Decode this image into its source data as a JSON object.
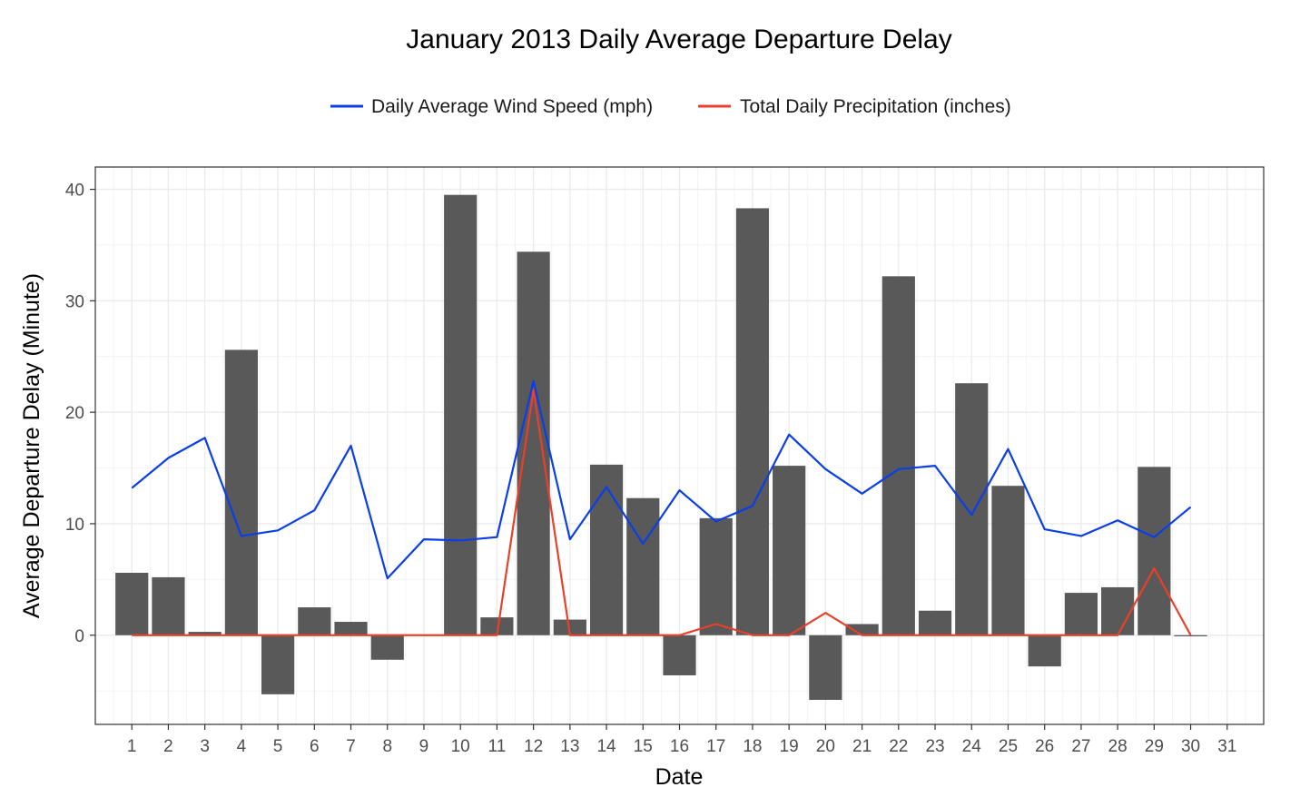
{
  "chart_data": {
    "type": "bar",
    "title": "January 2013 Daily Average Departure Delay",
    "xlabel": "Date",
    "ylabel": "Average Departure Delay (Minute)",
    "x_ticks": [
      "1",
      "2",
      "3",
      "4",
      "5",
      "6",
      "7",
      "8",
      "9",
      "10",
      "11",
      "12",
      "13",
      "14",
      "15",
      "16",
      "17",
      "18",
      "19",
      "20",
      "21",
      "22",
      "23",
      "24",
      "25",
      "26",
      "27",
      "28",
      "29",
      "30",
      "31"
    ],
    "y_ticks": [
      0,
      10,
      20,
      30,
      40
    ],
    "xlim": [
      0,
      32
    ],
    "ylim": [
      -8,
      42
    ],
    "grid": true,
    "legend_position": "top",
    "bars": {
      "x": [
        1,
        2,
        3,
        4,
        5,
        6,
        7,
        8,
        9,
        10,
        11,
        12,
        13,
        14,
        15,
        16,
        17,
        18,
        19,
        20,
        21,
        22,
        23,
        24,
        25,
        26,
        27,
        28,
        29,
        30
      ],
      "values": [
        5.6,
        5.2,
        0.3,
        25.6,
        -5.3,
        2.5,
        1.2,
        -2.2,
        0.0,
        39.5,
        1.6,
        34.4,
        1.4,
        15.3,
        12.3,
        -3.6,
        10.5,
        38.3,
        15.2,
        -5.8,
        1.0,
        32.2,
        2.2,
        22.6,
        13.4,
        -2.8,
        3.8,
        4.3,
        15.1,
        -0.1
      ],
      "color": "#595959"
    },
    "series": [
      {
        "name": "Daily Average Wind Speed (mph)",
        "color": "#0a3ee8",
        "x": [
          1,
          2,
          3,
          4,
          5,
          6,
          7,
          8,
          9,
          10,
          11,
          12,
          13,
          14,
          15,
          16,
          17,
          18,
          19,
          20,
          21,
          22,
          23,
          24,
          25,
          26,
          27,
          28,
          29,
          30
        ],
        "values": [
          13.2,
          15.9,
          17.7,
          8.9,
          9.4,
          11.2,
          17.0,
          5.1,
          8.6,
          8.5,
          8.8,
          22.8,
          8.6,
          13.3,
          8.2,
          13.0,
          10.2,
          11.6,
          18.0,
          14.9,
          12.7,
          14.9,
          15.2,
          10.8,
          16.7,
          9.5,
          8.9,
          10.3,
          8.8,
          11.5
        ]
      },
      {
        "name": "Total Daily Precipitation (inches)",
        "color": "#e8402a",
        "x": [
          1,
          2,
          3,
          4,
          5,
          6,
          7,
          8,
          9,
          10,
          11,
          12,
          13,
          14,
          15,
          16,
          17,
          18,
          19,
          20,
          21,
          22,
          23,
          24,
          25,
          26,
          27,
          28,
          29,
          30
        ],
        "values": [
          0,
          0,
          0,
          0,
          0,
          0,
          0,
          0,
          0,
          0,
          0,
          22,
          0,
          0,
          0,
          0,
          1,
          0,
          0,
          2,
          0,
          0,
          0,
          0,
          0,
          0,
          0,
          0,
          6,
          0
        ]
      }
    ]
  }
}
